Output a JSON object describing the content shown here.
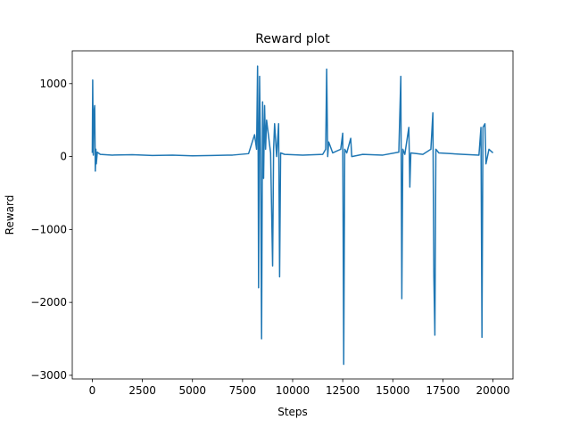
{
  "chart_data": {
    "type": "line",
    "title": "Reward plot",
    "x_label": "Steps",
    "y_label": "Reward",
    "x": [
      0,
      20,
      50,
      80,
      120,
      150,
      180,
      200,
      250,
      400,
      1000,
      2000,
      3000,
      4000,
      5000,
      6000,
      7000,
      7800,
      8100,
      8200,
      8250,
      8280,
      8300,
      8330,
      8350,
      8400,
      8450,
      8500,
      8550,
      8600,
      8650,
      8700,
      8900,
      9000,
      9050,
      9100,
      9200,
      9300,
      9350,
      9400,
      9600,
      10500,
      11500,
      11650,
      11700,
      11750,
      11800,
      12000,
      12400,
      12500,
      12550,
      12600,
      12700,
      12900,
      12950,
      13500,
      14500,
      15300,
      15400,
      15450,
      15500,
      15600,
      15800,
      15850,
      15900,
      16500,
      16900,
      17000,
      17050,
      17100,
      17150,
      17300,
      18500,
      19300,
      19400,
      19450,
      19500,
      19600,
      19650,
      19800,
      20000
    ],
    "series": [
      {
        "color": "#1f77b4",
        "values": [
          50,
          1050,
          20,
          600,
          700,
          -200,
          100,
          -100,
          60,
          30,
          20,
          25,
          15,
          20,
          10,
          15,
          20,
          40,
          300,
          100,
          1240,
          0,
          -1800,
          200,
          1100,
          0,
          -2500,
          750,
          -300,
          700,
          100,
          500,
          50,
          -1500,
          100,
          450,
          0,
          450,
          -1650,
          50,
          30,
          20,
          30,
          100,
          1200,
          0,
          200,
          50,
          100,
          320,
          -2850,
          100,
          50,
          250,
          0,
          30,
          20,
          60,
          1100,
          -1950,
          100,
          30,
          400,
          -420,
          50,
          30,
          100,
          600,
          -1650,
          -2450,
          100,
          50,
          30,
          20,
          400,
          -2480,
          400,
          450,
          -100,
          100,
          50
        ]
      }
    ],
    "xlim": [
      -1000,
      21000
    ],
    "ylim": [
      -3050,
      1450
    ],
    "xticks": [
      0,
      2500,
      5000,
      7500,
      10000,
      12500,
      15000,
      17500,
      20000
    ],
    "yticks": [
      {
        "value": -3000,
        "label": "−3000"
      },
      {
        "value": -2000,
        "label": "−2000"
      },
      {
        "value": -1000,
        "label": "−1000"
      },
      0,
      1000
    ],
    "grid": false
  }
}
